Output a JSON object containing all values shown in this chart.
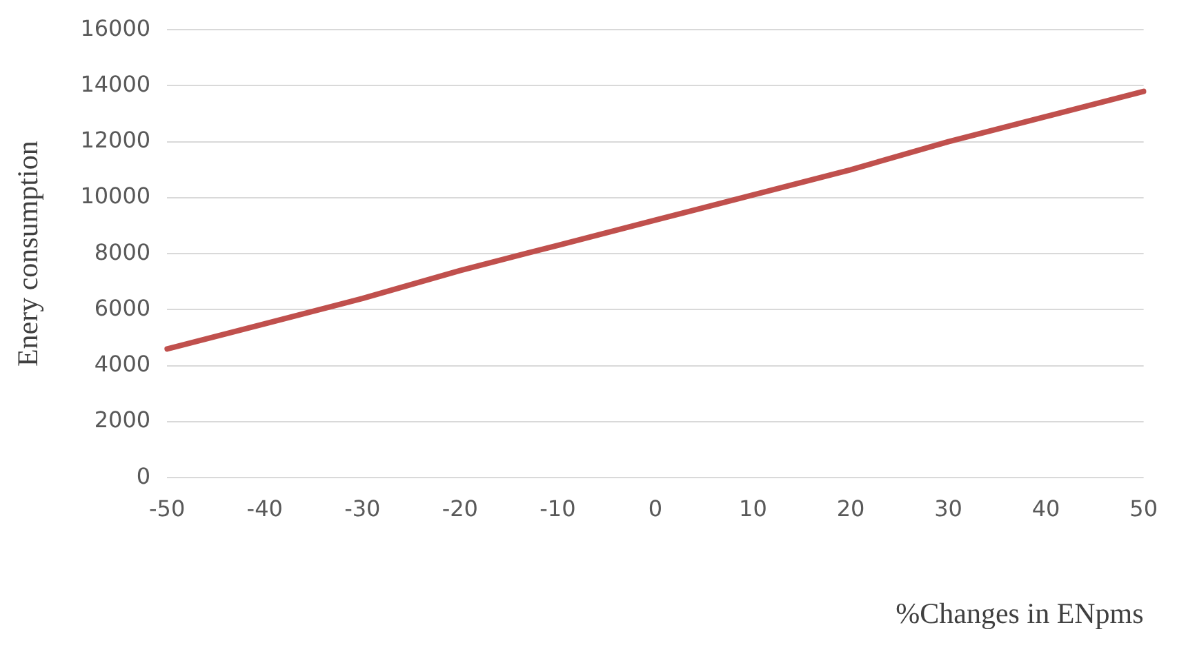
{
  "chart_data": {
    "type": "line",
    "xlabel": "%Changes in ENpms",
    "ylabel": "Enery consumption",
    "categories": [
      "-50",
      "-40",
      "-30",
      "-20",
      "-10",
      "0",
      "10",
      "20",
      "30",
      "40",
      "50"
    ],
    "series": [
      {
        "color": "#c0504d",
        "values": [
          4600,
          5500,
          6400,
          7400,
          8300,
          9200,
          10100,
          11000,
          12000,
          12900,
          13800
        ]
      }
    ],
    "ylim": [
      0,
      16000
    ],
    "yticks": [
      0,
      2000,
      4000,
      6000,
      8000,
      10000,
      12000,
      14000,
      16000
    ],
    "grid": "y",
    "legend": false,
    "marker": "none",
    "line_style": "solid"
  }
}
